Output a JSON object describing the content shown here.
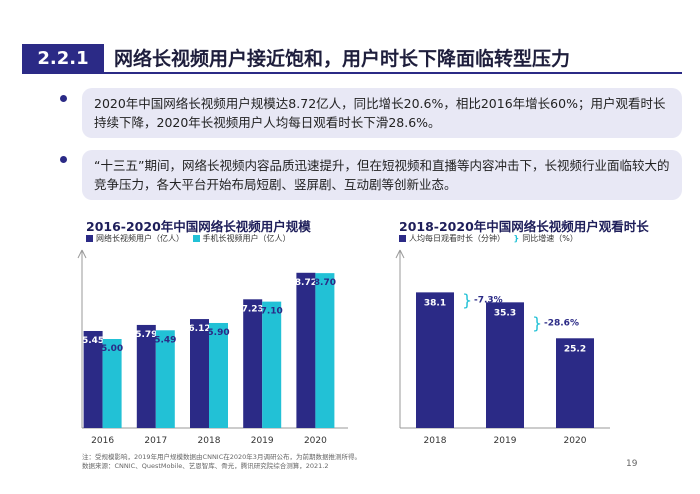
{
  "header": {
    "section_number": "2.2.1",
    "title": "网络长视频用户接近饱和，用户时长下降面临转型压力"
  },
  "bullets": [
    "2020年中国网络长视频用户规模达8.72亿人，同比增长20.6%，相比2016年增长60%；用户观看时长持续下降，2020年长视频用户人均每日观看时长下滑28.6%。",
    "“十三五”期间，网络长视频内容品质迅速提升，但在短视频和直播等内容冲击下，长视频行业面临较大的竞争压力，各大平台开始布局短剧、竖屏剧、互动剧等创新业态。"
  ],
  "chart_data": [
    {
      "type": "bar",
      "title": "2016-2020年中国网络长视频用户规模",
      "categories": [
        "2016",
        "2017",
        "2018",
        "2019",
        "2020"
      ],
      "series": [
        {
          "name": "网络长视频用户（亿人）",
          "values": [
            5.45,
            5.79,
            6.12,
            7.23,
            8.72
          ]
        },
        {
          "name": "手机长视频用户（亿人）",
          "values": [
            5.0,
            5.49,
            5.9,
            7.1,
            8.7
          ]
        }
      ],
      "ylim": [
        0,
        10
      ]
    },
    {
      "type": "bar",
      "title": "2018-2020年中国网络长视频用户观看时长",
      "categories": [
        "2018",
        "2019",
        "2020"
      ],
      "series": [
        {
          "name": "人均每日观看时长（分钟）",
          "values": [
            38.1,
            35.3,
            25.2
          ]
        }
      ],
      "legend_extra": "同比增速（%）",
      "growth_labels": [
        "-7.3%",
        "-28.6%"
      ],
      "ylim": [
        0,
        50
      ]
    }
  ],
  "footnote": {
    "line1": "注：受规模影响，2019年用户规模数据由CNNIC在2020年3月调研公布，为前期数据推测所得。",
    "line2": "数据来源：CNNIC、QuestMobile、艺恩智库、骨光，腾讯研究院综合测算，2021.2"
  },
  "page_number": "19",
  "colors": {
    "primary": "#2b2a86",
    "secondary": "#22c1d6",
    "panel": "#e8e8f5"
  }
}
